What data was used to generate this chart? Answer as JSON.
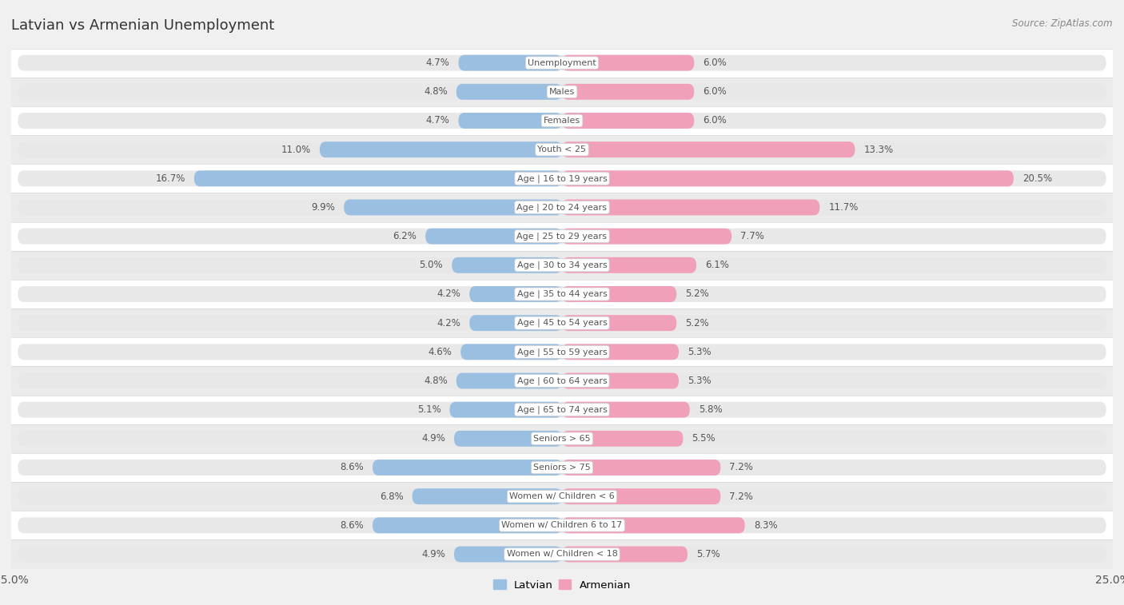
{
  "title": "Latvian vs Armenian Unemployment",
  "source": "Source: ZipAtlas.com",
  "categories": [
    "Unemployment",
    "Males",
    "Females",
    "Youth < 25",
    "Age | 16 to 19 years",
    "Age | 20 to 24 years",
    "Age | 25 to 29 years",
    "Age | 30 to 34 years",
    "Age | 35 to 44 years",
    "Age | 45 to 54 years",
    "Age | 55 to 59 years",
    "Age | 60 to 64 years",
    "Age | 65 to 74 years",
    "Seniors > 65",
    "Seniors > 75",
    "Women w/ Children < 6",
    "Women w/ Children 6 to 17",
    "Women w/ Children < 18"
  ],
  "latvian": [
    4.7,
    4.8,
    4.7,
    11.0,
    16.7,
    9.9,
    6.2,
    5.0,
    4.2,
    4.2,
    4.6,
    4.8,
    5.1,
    4.9,
    8.6,
    6.8,
    8.6,
    4.9
  ],
  "armenian": [
    6.0,
    6.0,
    6.0,
    13.3,
    20.5,
    11.7,
    7.7,
    6.1,
    5.2,
    5.2,
    5.3,
    5.3,
    5.8,
    5.5,
    7.2,
    7.2,
    8.3,
    5.7
  ],
  "latvian_color": "#9abfe0",
  "armenian_color": "#f0a0b8",
  "axis_max": 25.0,
  "bg_color": "#f0f0f0",
  "bar_track_color": "#e8e8e8",
  "bar_bg_white": "#f8f8f8",
  "sep_color": "#d8d8d8"
}
